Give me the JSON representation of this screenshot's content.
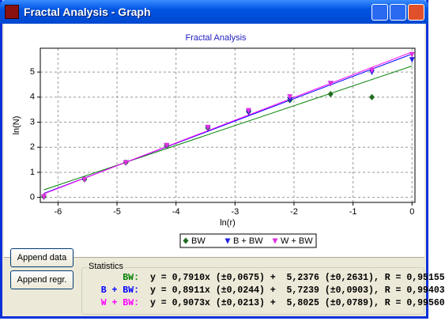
{
  "window": {
    "title": "Fractal Analysis - Graph"
  },
  "chart_data": {
    "type": "scatter",
    "title": "Fractal Analysis",
    "x_label": "ln(r)",
    "y_label": "ln(N)",
    "xlim": [
      -6.3,
      0.05
    ],
    "ylim": [
      -0.2,
      5.95
    ],
    "xticks": [
      -6,
      -5,
      -4,
      -3,
      -2,
      -1,
      0
    ],
    "yticks": [
      0,
      1,
      2,
      3,
      4,
      5
    ],
    "grid": true,
    "legend": "bottom",
    "series": [
      {
        "name": "BW",
        "color": "#1f6b1f",
        "line_color": "#008000",
        "marker": "diamond",
        "x": [
          -6.24,
          -5.55,
          -4.85,
          -4.16,
          -3.46,
          -2.77,
          -2.07,
          -1.38,
          -0.68
        ],
        "values": [
          0.03,
          0.72,
          1.39,
          2.06,
          2.77,
          3.42,
          3.88,
          4.12,
          4.0
        ],
        "fit_x": [
          -6.24,
          0
        ],
        "fit_y": [
          0.3,
          5.24
        ]
      },
      {
        "name": "B + BW",
        "color": "#2020e0",
        "line_color": "#0000ff",
        "marker": "triangle",
        "x": [
          -6.24,
          -5.55,
          -4.85,
          -4.16,
          -3.46,
          -2.77,
          -2.07,
          -1.38,
          -0.68,
          0
        ],
        "values": [
          0.03,
          0.72,
          1.39,
          2.06,
          2.77,
          3.4,
          3.9,
          4.55,
          5.0,
          5.5
        ],
        "fit_x": [
          -6.24,
          0
        ],
        "fit_y": [
          0.16,
          5.72
        ]
      },
      {
        "name": "W + BW",
        "color": "#e030e0",
        "line_color": "#ff00ff",
        "marker": "triangle",
        "x": [
          -6.24,
          -5.55,
          -4.85,
          -4.16,
          -3.46,
          -2.77,
          -2.07,
          -1.38,
          -0.68,
          0
        ],
        "values": [
          0.03,
          0.72,
          1.39,
          2.08,
          2.8,
          3.47,
          4.02,
          4.55,
          5.08,
          5.7
        ],
        "fit_x": [
          -6.24,
          0
        ],
        "fit_y": [
          0.14,
          5.8
        ]
      }
    ]
  },
  "statistics": {
    "title": "Statistics",
    "rows": [
      {
        "label": "BW:",
        "color": "#008000",
        "text": "y = 0,7910x (±0,0675) +  5,2376 (±0,2631), R = 0,95155"
      },
      {
        "label": "B + BW:",
        "color": "#0000ff",
        "text": "y = 0,8911x (±0,0244) +  5,7239 (±0,0903), R = 0,99403"
      },
      {
        "label": "W + BW:",
        "color": "#ff00ff",
        "text": "y = 0,9073x (±0,0213) +  5,8025 (±0,0789), R = 0,99560"
      }
    ]
  },
  "buttons": [
    "Append data",
    "Append regr."
  ]
}
